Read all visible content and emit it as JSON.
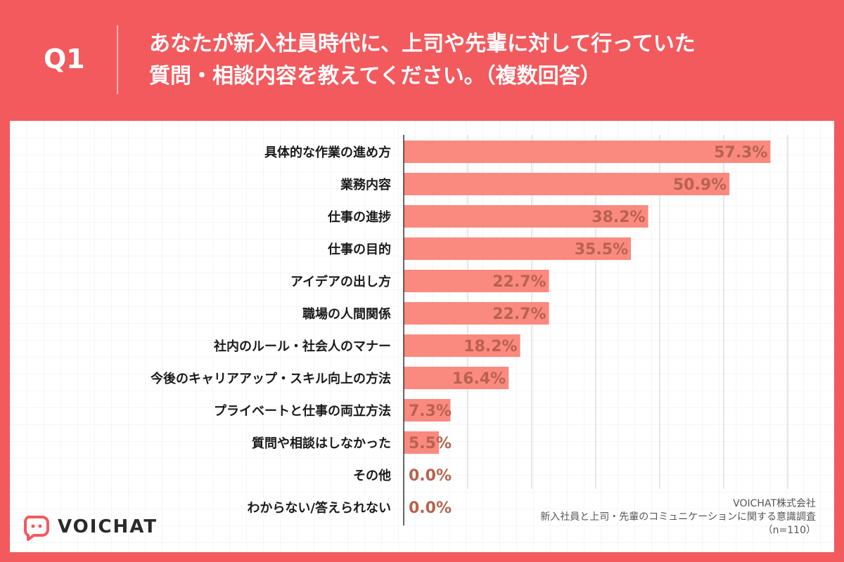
{
  "header": {
    "q_label": "Q1",
    "title_line1": "あなたが新入社員時代に、上司や先輩に対して行っていた",
    "title_line2": "質問・相談内容を教えてください。（複数回答）"
  },
  "colors": {
    "background": "#f25a5e",
    "bar": "#fa8a80",
    "value_label": "#b8634d"
  },
  "chart_data": {
    "type": "bar",
    "orientation": "horizontal",
    "categories": [
      "具体的な作業の進め方",
      "業務内容",
      "仕事の進捗",
      "仕事の目的",
      "アイデアの出し方",
      "職場の人間関係",
      "社内のルール・社会人のマナー",
      "今後のキャリアアップ・スキル向上の方法",
      "プライベートと仕事の両立方法",
      "質問や相談はしなかった",
      "その他",
      "わからない/答えられない"
    ],
    "values": [
      57.3,
      50.9,
      38.2,
      35.5,
      22.7,
      22.7,
      18.2,
      16.4,
      7.3,
      5.5,
      0.0,
      0.0
    ],
    "value_labels": [
      "57.3%",
      "50.9%",
      "38.2%",
      "35.5%",
      "22.7%",
      "22.7%",
      "18.2%",
      "16.4%",
      "7.3%",
      "5.5%",
      "0.0%",
      "0.0%"
    ],
    "xlim": [
      0,
      60
    ],
    "grid": true,
    "unit": "%"
  },
  "logo": {
    "icon": "voichat-speech-bubble-icon",
    "text": "VOICHAT"
  },
  "credit": {
    "company": "VOICHAT株式会社",
    "survey": "新入社員と上司・先輩のコミュニケーションに関する意識調査",
    "sample": "（n=110）"
  }
}
